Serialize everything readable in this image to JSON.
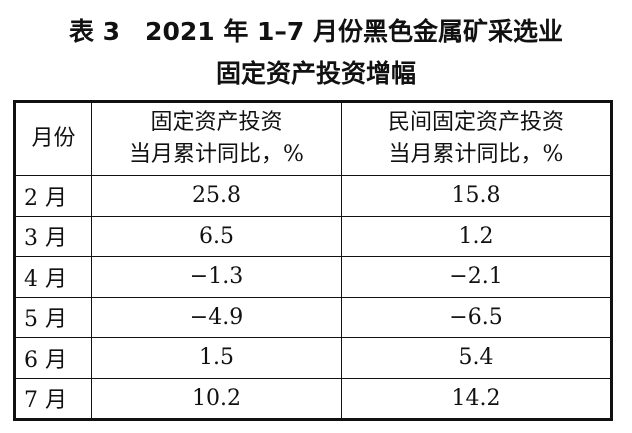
{
  "title": [
    "表 3　2021 年 1–7 月份黑色金属矿采选业",
    "固定资产投资增幅"
  ],
  "table": {
    "header": [
      [
        "月份"
      ],
      [
        "固定资产投资",
        "当月累计同比，%"
      ],
      [
        "民间固定资产投资",
        "当月累计同比，%"
      ]
    ],
    "rows": [
      [
        "2 月",
        "25.8",
        "15.8"
      ],
      [
        "3 月",
        "6.5",
        "1.2"
      ],
      [
        "4 月",
        "−1.3",
        "−2.1"
      ],
      [
        "5 月",
        "−4.9",
        "−6.5"
      ],
      [
        "6 月",
        "1.5",
        "5.4"
      ],
      [
        "7 月",
        "10.2",
        "14.2"
      ]
    ]
  }
}
